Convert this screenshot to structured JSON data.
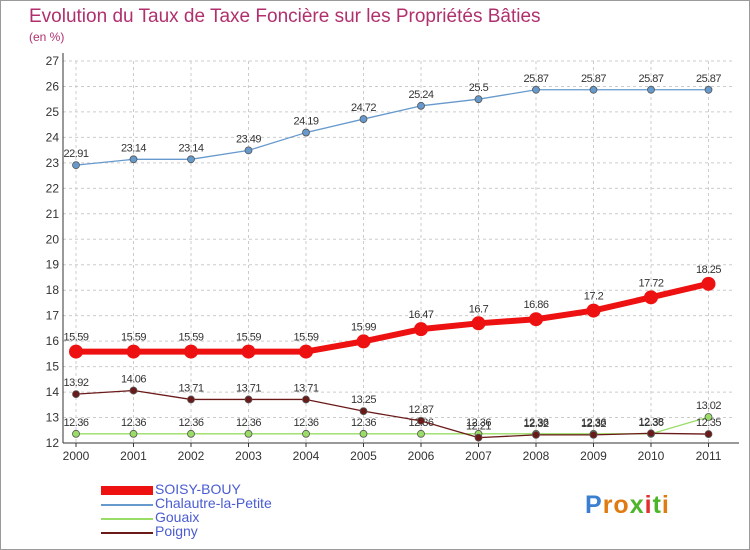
{
  "title": "Evolution du Taux de Taxe Foncière sur les Propriétés Bâties",
  "unit": "(en %)",
  "logo": "Proxiti",
  "colors": {
    "title": "#b0306e",
    "axis": "#333333",
    "grid": "#cccccc",
    "legend_text": "#4a5cd0"
  },
  "chart_data": {
    "type": "line",
    "title": "Evolution du Taux de Taxe Foncière sur les Propriétés Bâties",
    "ylabel": "(en %)",
    "xlabel": "",
    "ylim": [
      12,
      27
    ],
    "grid": true,
    "legend_position": "bottom-left",
    "x": [
      "2000",
      "2001",
      "2002",
      "2003",
      "2004",
      "2005",
      "2006",
      "2007",
      "2008",
      "2009",
      "2010",
      "2011"
    ],
    "y_ticks": [
      12,
      13,
      14,
      15,
      16,
      17,
      18,
      19,
      20,
      21,
      22,
      23,
      24,
      25,
      26,
      27
    ],
    "series": [
      {
        "name": "SOISY-BOUY",
        "color": "#ee1111",
        "style": "thick",
        "values": [
          15.59,
          15.59,
          15.59,
          15.59,
          15.59,
          15.99,
          16.47,
          16.7,
          16.86,
          17.2,
          17.72,
          18.25
        ],
        "labels": [
          "15.59",
          "15.59",
          "15.59",
          "15.59",
          "15.59",
          "15.99",
          "16.47",
          "16.7",
          "16.86",
          "17.2",
          "17.72",
          "18.25"
        ]
      },
      {
        "name": "Chalautre-la-Petite",
        "color": "#6699cc",
        "style": "thin",
        "values": [
          22.91,
          23.14,
          23.14,
          23.49,
          24.19,
          24.72,
          25.24,
          25.5,
          25.87,
          25.87,
          25.87,
          25.87
        ],
        "labels": [
          "22.91",
          "23.14",
          "23.14",
          "23.49",
          "24.19",
          "24.72",
          "25.24",
          "25.5",
          "25.87",
          "25.87",
          "25.87",
          "25.87"
        ]
      },
      {
        "name": "Gouaix",
        "color": "#99dd66",
        "style": "thin",
        "values": [
          12.36,
          12.36,
          12.36,
          12.36,
          12.36,
          12.36,
          12.36,
          12.36,
          12.36,
          12.36,
          12.36,
          13.02
        ],
        "labels": [
          "12.36",
          "12.36",
          "12.36",
          "12.36",
          "12.36",
          "12.36",
          "12.36",
          "12.36",
          "12.36",
          "12.36",
          "12.36",
          "13.02"
        ]
      },
      {
        "name": "Poigny",
        "color": "#6b1a1a",
        "style": "thin",
        "values": [
          13.92,
          14.06,
          13.71,
          13.71,
          13.71,
          13.25,
          12.87,
          12.21,
          12.32,
          12.32,
          12.38,
          12.35
        ],
        "labels": [
          "13.92",
          "14.06",
          "13.71",
          "13.71",
          "13.71",
          "13.25",
          "12.87",
          "12.21",
          "12.32",
          "12.32",
          "12.38",
          "12.35"
        ]
      }
    ]
  }
}
